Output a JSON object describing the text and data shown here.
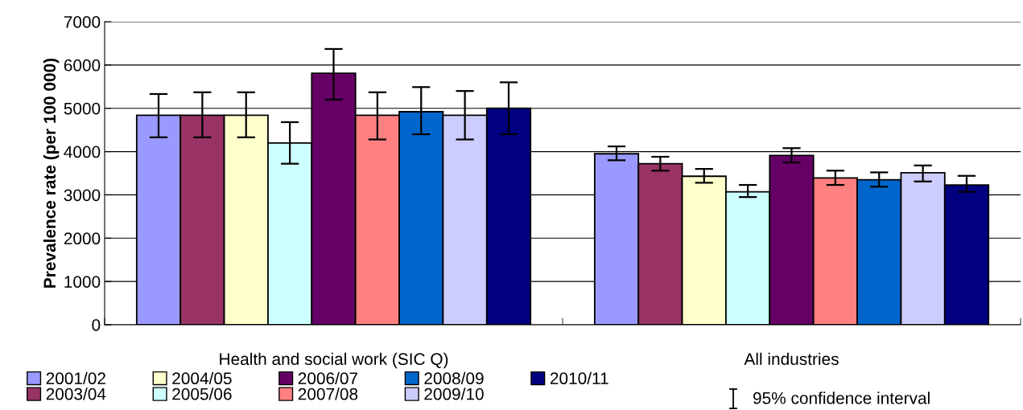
{
  "chart_data": {
    "type": "bar",
    "ylabel": "Prevalence rate (per 100 000)",
    "categories": [
      "Health and social work (SIC Q)",
      "All industries"
    ],
    "series": [
      {
        "name": "2001/02",
        "color": "#9999ff",
        "values": [
          4840,
          3950
        ],
        "errors": [
          [
            4330,
            5330
          ],
          [
            3800,
            4120
          ]
        ]
      },
      {
        "name": "2003/04",
        "color": "#993366",
        "values": [
          4840,
          3720
        ],
        "errors": [
          [
            4330,
            5370
          ],
          [
            3560,
            3880
          ]
        ]
      },
      {
        "name": "2004/05",
        "color": "#ffffcc",
        "values": [
          4840,
          3430
        ],
        "errors": [
          [
            4330,
            5370
          ],
          [
            3280,
            3600
          ]
        ]
      },
      {
        "name": "2005/06",
        "color": "#ccffff",
        "values": [
          4200,
          3070
        ],
        "errors": [
          [
            3720,
            4680
          ],
          [
            2950,
            3230
          ]
        ]
      },
      {
        "name": "2006/07",
        "color": "#660066",
        "values": [
          5810,
          3910
        ],
        "errors": [
          [
            5200,
            6370
          ],
          [
            3750,
            4080
          ]
        ]
      },
      {
        "name": "2007/08",
        "color": "#ff8080",
        "values": [
          4840,
          3390
        ],
        "errors": [
          [
            4280,
            5370
          ],
          [
            3230,
            3560
          ]
        ]
      },
      {
        "name": "2008/09",
        "color": "#0066cc",
        "values": [
          4920,
          3350
        ],
        "errors": [
          [
            4400,
            5490
          ],
          [
            3190,
            3520
          ]
        ]
      },
      {
        "name": "2009/10",
        "color": "#ccccff",
        "values": [
          4840,
          3510
        ],
        "errors": [
          [
            4280,
            5400
          ],
          [
            3310,
            3680
          ]
        ]
      },
      {
        "name": "2010/11",
        "color": "#000080",
        "values": [
          5000,
          3230
        ],
        "errors": [
          [
            4400,
            5600
          ],
          [
            3070,
            3440
          ]
        ]
      }
    ],
    "ylim": [
      0,
      7000
    ],
    "yticks": [
      0,
      1000,
      2000,
      3000,
      4000,
      5000,
      6000,
      7000
    ],
    "grid": "y",
    "legend": "bottom",
    "annotations": [
      "95% confidence interval"
    ]
  }
}
